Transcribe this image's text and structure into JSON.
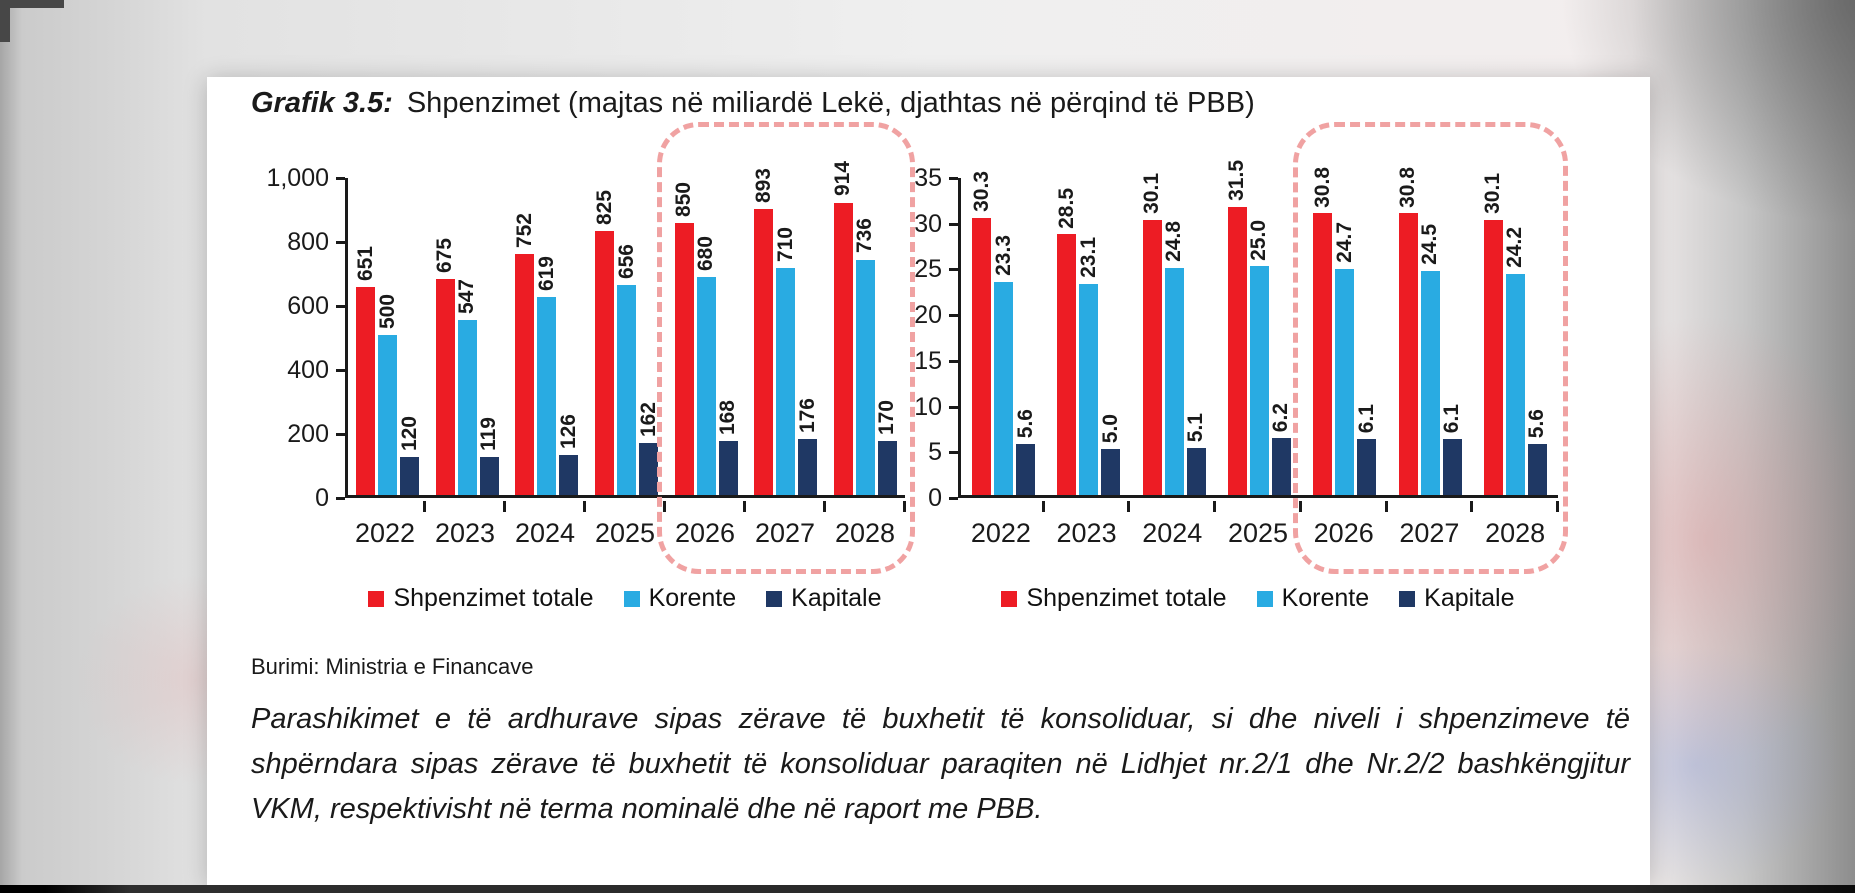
{
  "page": {
    "title_prefix": "Grafik 3.5:",
    "title_rest": "Shpenzimet (majtas në miliardë Lekë, djathtas në përqind të PBB)",
    "source": "Burimi: Ministria e Financave",
    "note": "Parashikimet e të ardhurave sipas zërave të buxhetit të konsoliduar, si dhe niveli i shpenzimeve të shpërndara sipas zërave të buxhetit të konsoliduar paraqiten në Lidhjet nr.2/1 dhe Nr.2/2 bashkëngjitur VKM, respektivisht në terma nominalë dhe në raport me PBB."
  },
  "colors": {
    "total": "#ED1C24",
    "korente": "#29ABE2",
    "kapitale": "#1F3864",
    "highlight": "#F0A2A2",
    "axis": "#1A1A1A"
  },
  "legend": [
    "Shpenzimet totale",
    "Korente",
    "Kapitale"
  ],
  "chart_data": [
    {
      "type": "bar",
      "unit": "miliardë Lekë",
      "categories": [
        "2022",
        "2023",
        "2024",
        "2025",
        "2026",
        "2027",
        "2028"
      ],
      "series": [
        {
          "name": "Shpenzimet totale",
          "color_key": "total",
          "values": [
            651,
            675,
            752,
            825,
            850,
            893,
            914
          ],
          "labels": [
            "651",
            "675",
            "752",
            "825",
            "850",
            "893",
            "914"
          ]
        },
        {
          "name": "Korente",
          "color_key": "korente",
          "values": [
            500,
            547,
            619,
            656,
            680,
            710,
            736
          ],
          "labels": [
            "500",
            "547",
            "619",
            "656",
            "680",
            "710",
            "736"
          ]
        },
        {
          "name": "Kapitale",
          "color_key": "kapitale",
          "values": [
            120,
            119,
            126,
            162,
            168,
            176,
            170
          ],
          "labels": [
            "120",
            "119",
            "126",
            "162",
            "168",
            "176",
            "170"
          ]
        }
      ],
      "ylim": [
        0,
        1000
      ],
      "ytick_labels": [
        "1,000",
        "800",
        "600",
        "400",
        "200",
        "0"
      ],
      "grid": false,
      "legend_position": "bottom",
      "highlight": {
        "from": "2026",
        "to": "2028"
      }
    },
    {
      "type": "bar",
      "unit": "përqind të PBB",
      "categories": [
        "2022",
        "2023",
        "2024",
        "2025",
        "2026",
        "2027",
        "2028"
      ],
      "series": [
        {
          "name": "Shpenzimet totale",
          "color_key": "total",
          "values": [
            30.3,
            28.5,
            30.1,
            31.5,
            30.8,
            30.8,
            30.1
          ],
          "labels": [
            "30.3",
            "28.5",
            "30.1",
            "31.5",
            "30.8",
            "30.8",
            "30.1"
          ]
        },
        {
          "name": "Korente",
          "color_key": "korente",
          "values": [
            23.3,
            23.1,
            24.8,
            25.0,
            24.7,
            24.5,
            24.2
          ],
          "labels": [
            "23.3",
            "23.1",
            "24.8",
            "25.0",
            "24.7",
            "24.5",
            "24.2"
          ]
        },
        {
          "name": "Kapitale",
          "color_key": "kapitale",
          "values": [
            5.6,
            5.0,
            5.1,
            6.2,
            6.1,
            6.1,
            5.6
          ],
          "labels": [
            "5.6",
            "5.0",
            "5.1",
            "6.2",
            "6.1",
            "6.1",
            "5.6"
          ]
        }
      ],
      "ylim": [
        0,
        35
      ],
      "ytick_labels": [
        "35",
        "30",
        "25",
        "20",
        "15",
        "10",
        "5",
        "0"
      ],
      "grid": false,
      "legend_position": "bottom",
      "highlight": {
        "from": "2026",
        "to": "2028"
      }
    }
  ]
}
